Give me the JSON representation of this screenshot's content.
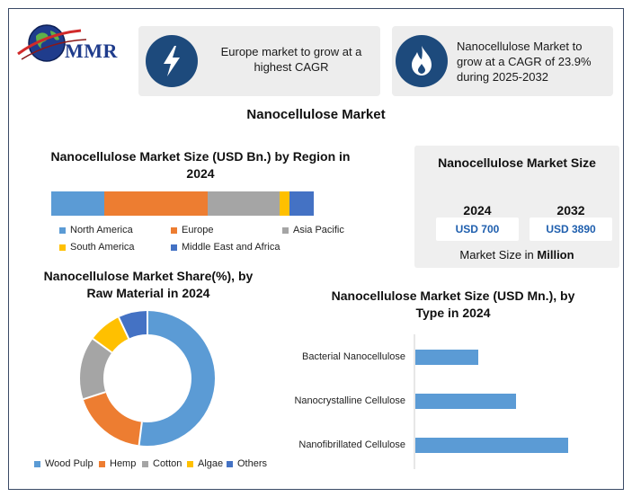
{
  "brand": {
    "logo_text": "MMR"
  },
  "highlights": [
    {
      "icon": "lightning-bolt-icon",
      "text": "Europe market to grow at a highest CAGR"
    },
    {
      "icon": "flame-icon",
      "text": "Nanocellulose Market to grow at a CAGR of 23.9% during 2025-2032"
    }
  ],
  "main_title": "Nanocellulose Market",
  "colors": {
    "north_america": "#5b9bd5",
    "europe": "#ed7d31",
    "asia_pacific": "#a5a5a5",
    "south_america": "#ffc000",
    "middle_east_africa": "#4472c4",
    "bar": "#5b9bd5",
    "accent": "#1d4a7c"
  },
  "market_size": {
    "title": "Nanocellulose Market Size",
    "year_1": "2024",
    "value_1": "USD 700",
    "year_2": "2032",
    "value_2": "USD 3890",
    "footer_prefix": "Market Size in ",
    "footer_bold": "Million"
  },
  "chart_data": [
    {
      "type": "bar",
      "orientation": "stacked-horizontal",
      "title": "Nanocellulose Market Size (USD Bn.) by Region in 2024",
      "categories": [
        "2024"
      ],
      "series": [
        {
          "name": "North America",
          "values": [
            20
          ]
        },
        {
          "name": "Europe",
          "values": [
            39
          ]
        },
        {
          "name": "Asia Pacific",
          "values": [
            27
          ]
        },
        {
          "name": "South America",
          "values": [
            4
          ]
        },
        {
          "name": "Middle East and Africa",
          "values": [
            9
          ]
        }
      ],
      "legend": "bottom"
    },
    {
      "type": "pie",
      "style": "donut",
      "title": "Nanocellulose Market Share(%), by Raw Material in 2024",
      "labels": [
        "Wood Pulp",
        "Hemp",
        "Cotton",
        "Algae",
        "Others"
      ],
      "values": [
        52,
        18,
        15,
        8,
        7
      ],
      "legend": "bottom"
    },
    {
      "type": "bar",
      "orientation": "horizontal",
      "title": "Nanocellulose Market Size (USD Mn.), by Type in 2024",
      "categories": [
        "Bacterial Nanocellulose",
        "Nanocrystalline Cellulose",
        "Nanofibrillated Cellulose"
      ],
      "values": [
        70,
        112,
        170
      ],
      "grid": false
    }
  ]
}
